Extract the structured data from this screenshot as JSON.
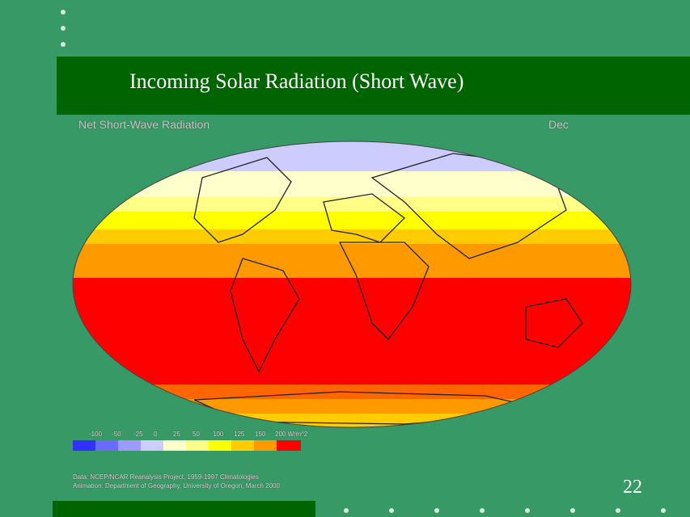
{
  "header": {
    "title": "Incoming Solar Radiation (Short Wave)"
  },
  "map": {
    "title": "Net Short-Wave Radiation",
    "month": "Dec",
    "legend": [
      "-100",
      "-50",
      "-25",
      "0",
      "25",
      "50",
      "100",
      "125",
      "150",
      "200 W/m^2"
    ],
    "source": "Data: NCEP/NCAR Reanalysis Project, 1959-1997 Climatologies",
    "credit": "Animation: Department of Geography, University of Oregon, March 2000"
  },
  "footer": {
    "page": "22"
  }
}
